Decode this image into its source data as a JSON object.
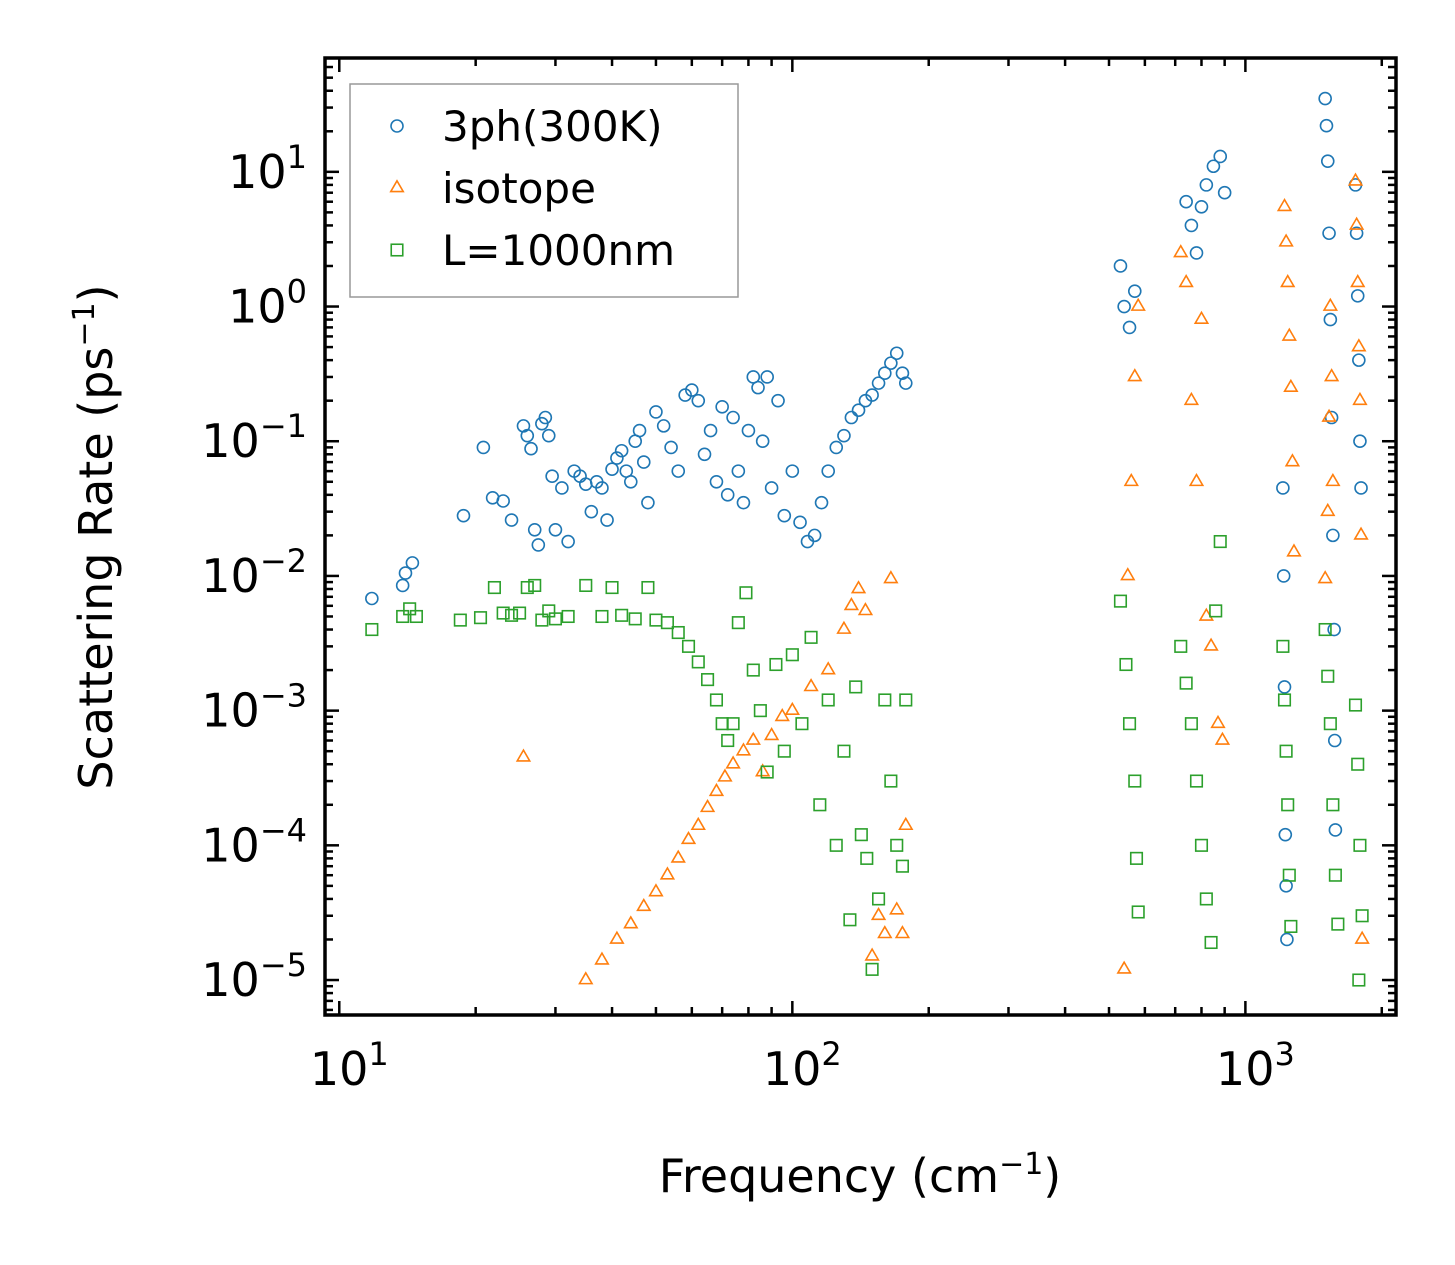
{
  "chart_data": {
    "type": "scatter",
    "xscale": "log",
    "yscale": "log",
    "xlabel": "Frequency (cm",
    "xlabel_exp": "−1",
    "xlabel_close": ")",
    "ylabel": "Scattering Rate (ps",
    "ylabel_exp": "−1",
    "ylabel_close": ")",
    "xlim": [
      9.3,
      2150
    ],
    "ylim": [
      5.5e-06,
      70
    ],
    "legend_position": "top-left",
    "x_ticks": [
      {
        "value": 10,
        "base": "10",
        "exp": "1"
      },
      {
        "value": 100,
        "base": "10",
        "exp": "2"
      },
      {
        "value": 1000,
        "base": "10",
        "exp": "3"
      }
    ],
    "y_ticks": [
      {
        "value": 1e-05,
        "base": "10",
        "exp": "−5"
      },
      {
        "value": 0.0001,
        "base": "10",
        "exp": "−4"
      },
      {
        "value": 0.001,
        "base": "10",
        "exp": "−3"
      },
      {
        "value": 0.01,
        "base": "10",
        "exp": "−2"
      },
      {
        "value": 0.1,
        "base": "10",
        "exp": "−1"
      },
      {
        "value": 1,
        "base": "10",
        "exp": "0"
      },
      {
        "value": 10,
        "base": "10",
        "exp": "1"
      }
    ],
    "series": [
      {
        "name": "3ph(300K)",
        "marker": "circle",
        "color": "#1f77b4",
        "points": [
          [
            11.8,
            0.0068
          ],
          [
            13.8,
            0.0085
          ],
          [
            14.0,
            0.0105
          ],
          [
            14.5,
            0.0125
          ],
          [
            18.8,
            0.028
          ],
          [
            20.8,
            0.09
          ],
          [
            21.8,
            0.038
          ],
          [
            23.0,
            0.036
          ],
          [
            24.0,
            0.026
          ],
          [
            25.5,
            0.13
          ],
          [
            26.0,
            0.11
          ],
          [
            26.5,
            0.088
          ],
          [
            27.0,
            0.022
          ],
          [
            27.5,
            0.017
          ],
          [
            28.0,
            0.135
          ],
          [
            28.5,
            0.15
          ],
          [
            29.0,
            0.11
          ],
          [
            29.5,
            0.055
          ],
          [
            30.0,
            0.022
          ],
          [
            31.0,
            0.045
          ],
          [
            32.0,
            0.018
          ],
          [
            33.0,
            0.06
          ],
          [
            34.0,
            0.055
          ],
          [
            35.0,
            0.048
          ],
          [
            36.0,
            0.03
          ],
          [
            37.0,
            0.05
          ],
          [
            38.0,
            0.045
          ],
          [
            39.0,
            0.026
          ],
          [
            40.0,
            0.062
          ],
          [
            41.0,
            0.075
          ],
          [
            42.0,
            0.085
          ],
          [
            43.0,
            0.06
          ],
          [
            44.0,
            0.05
          ],
          [
            45.0,
            0.1
          ],
          [
            46.0,
            0.12
          ],
          [
            47.0,
            0.07
          ],
          [
            48.0,
            0.035
          ],
          [
            50.0,
            0.165
          ],
          [
            52.0,
            0.13
          ],
          [
            54.0,
            0.09
          ],
          [
            56.0,
            0.06
          ],
          [
            58.0,
            0.22
          ],
          [
            60.0,
            0.24
          ],
          [
            62.0,
            0.2
          ],
          [
            64.0,
            0.08
          ],
          [
            66.0,
            0.12
          ],
          [
            68.0,
            0.05
          ],
          [
            70.0,
            0.18
          ],
          [
            72.0,
            0.04
          ],
          [
            74.0,
            0.15
          ],
          [
            76.0,
            0.06
          ],
          [
            78.0,
            0.035
          ],
          [
            80.0,
            0.12
          ],
          [
            82.0,
            0.3
          ],
          [
            84.0,
            0.25
          ],
          [
            86.0,
            0.1
          ],
          [
            88.0,
            0.3
          ],
          [
            90.0,
            0.045
          ],
          [
            93.0,
            0.2
          ],
          [
            96.0,
            0.028
          ],
          [
            100.0,
            0.06
          ],
          [
            104.0,
            0.025
          ],
          [
            108.0,
            0.018
          ],
          [
            112.0,
            0.02
          ],
          [
            116.0,
            0.035
          ],
          [
            120.0,
            0.06
          ],
          [
            125.0,
            0.09
          ],
          [
            130.0,
            0.11
          ],
          [
            135.0,
            0.15
          ],
          [
            140.0,
            0.17
          ],
          [
            145.0,
            0.2
          ],
          [
            150.0,
            0.22
          ],
          [
            155.0,
            0.27
          ],
          [
            160.0,
            0.32
          ],
          [
            165.0,
            0.38
          ],
          [
            170.0,
            0.45
          ],
          [
            175.0,
            0.32
          ],
          [
            178.0,
            0.27
          ],
          [
            530.0,
            2.0
          ],
          [
            540.0,
            1.0
          ],
          [
            555.0,
            0.7
          ],
          [
            570.0,
            1.3
          ],
          [
            740.0,
            6.0
          ],
          [
            760.0,
            4.0
          ],
          [
            780.0,
            2.5
          ],
          [
            800.0,
            5.5
          ],
          [
            820.0,
            8.0
          ],
          [
            850.0,
            11.0
          ],
          [
            880.0,
            13.0
          ],
          [
            900.0,
            7.0
          ],
          [
            1210.0,
            0.045
          ],
          [
            1215.0,
            0.01
          ],
          [
            1220.0,
            0.0015
          ],
          [
            1225.0,
            0.00012
          ],
          [
            1230.0,
            5e-05
          ],
          [
            1235.0,
            2e-05
          ],
          [
            1500.0,
            35.0
          ],
          [
            1510.0,
            22.0
          ],
          [
            1520.0,
            12.0
          ],
          [
            1530.0,
            3.5
          ],
          [
            1540.0,
            0.8
          ],
          [
            1550.0,
            0.15
          ],
          [
            1560.0,
            0.02
          ],
          [
            1570.0,
            0.004
          ],
          [
            1575.0,
            0.0006
          ],
          [
            1580.0,
            0.00013
          ],
          [
            1750.0,
            8.0
          ],
          [
            1760.0,
            3.5
          ],
          [
            1770.0,
            1.2
          ],
          [
            1780.0,
            0.4
          ],
          [
            1790.0,
            0.1
          ],
          [
            1800.0,
            0.045
          ]
        ]
      },
      {
        "name": "isotope",
        "marker": "triangle",
        "color": "#ff7f0e",
        "points": [
          [
            25.5,
            0.00045
          ],
          [
            35.0,
            1e-05
          ],
          [
            38.0,
            1.4e-05
          ],
          [
            41.0,
            2e-05
          ],
          [
            44.0,
            2.6e-05
          ],
          [
            47.0,
            3.5e-05
          ],
          [
            50.0,
            4.5e-05
          ],
          [
            53.0,
            6e-05
          ],
          [
            56.0,
            8e-05
          ],
          [
            59.0,
            0.00011
          ],
          [
            62.0,
            0.00014
          ],
          [
            65.0,
            0.00019
          ],
          [
            68.0,
            0.00025
          ],
          [
            71.0,
            0.00032
          ],
          [
            74.0,
            0.0004
          ],
          [
            78.0,
            0.0005
          ],
          [
            82.0,
            0.0006
          ],
          [
            86.0,
            0.00035
          ],
          [
            90.0,
            0.00065
          ],
          [
            95.0,
            0.0009
          ],
          [
            100.0,
            0.001
          ],
          [
            110.0,
            0.0015
          ],
          [
            120.0,
            0.002
          ],
          [
            130.0,
            0.004
          ],
          [
            135.0,
            0.006
          ],
          [
            140.0,
            0.008
          ],
          [
            145.0,
            0.0055
          ],
          [
            150.0,
            1.5e-05
          ],
          [
            155.0,
            3e-05
          ],
          [
            160.0,
            2.2e-05
          ],
          [
            165.0,
            0.0095
          ],
          [
            170.0,
            3.3e-05
          ],
          [
            175.0,
            2.2e-05
          ],
          [
            178.0,
            0.00014
          ],
          [
            540.0,
            1.2e-05
          ],
          [
            550.0,
            0.01
          ],
          [
            560.0,
            0.05
          ],
          [
            570.0,
            0.3
          ],
          [
            580.0,
            1.0
          ],
          [
            720.0,
            2.5
          ],
          [
            740.0,
            1.5
          ],
          [
            760.0,
            0.2
          ],
          [
            780.0,
            0.05
          ],
          [
            800.0,
            0.8
          ],
          [
            820.0,
            0.005
          ],
          [
            840.0,
            0.003
          ],
          [
            870.0,
            0.0008
          ],
          [
            890.0,
            0.0006
          ],
          [
            1220.0,
            5.5
          ],
          [
            1230.0,
            3.0
          ],
          [
            1240.0,
            1.5
          ],
          [
            1250.0,
            0.6
          ],
          [
            1260.0,
            0.25
          ],
          [
            1270.0,
            0.07
          ],
          [
            1280.0,
            0.015
          ],
          [
            1500.0,
            0.0095
          ],
          [
            1520.0,
            0.03
          ],
          [
            1530.0,
            0.15
          ],
          [
            1540.0,
            1.0
          ],
          [
            1550.0,
            0.3
          ],
          [
            1560.0,
            0.05
          ],
          [
            1750.0,
            8.5
          ],
          [
            1760.0,
            4.0
          ],
          [
            1770.0,
            1.5
          ],
          [
            1780.0,
            0.5
          ],
          [
            1790.0,
            0.2
          ],
          [
            1800.0,
            0.02
          ],
          [
            1810.0,
            2e-05
          ]
        ]
      },
      {
        "name": "L=1000nm",
        "marker": "square",
        "color": "#2ca02c",
        "points": [
          [
            11.8,
            0.004
          ],
          [
            13.8,
            0.005
          ],
          [
            14.3,
            0.0057
          ],
          [
            14.8,
            0.005
          ],
          [
            18.5,
            0.0047
          ],
          [
            20.5,
            0.0049
          ],
          [
            22.0,
            0.0082
          ],
          [
            23.0,
            0.0053
          ],
          [
            24.0,
            0.0051
          ],
          [
            25.0,
            0.0053
          ],
          [
            26.0,
            0.0082
          ],
          [
            27.0,
            0.0085
          ],
          [
            28.0,
            0.0047
          ],
          [
            29.0,
            0.0055
          ],
          [
            30.0,
            0.0048
          ],
          [
            32.0,
            0.005
          ],
          [
            35.0,
            0.0085
          ],
          [
            38.0,
            0.005
          ],
          [
            40.0,
            0.0082
          ],
          [
            42.0,
            0.0051
          ],
          [
            45.0,
            0.0048
          ],
          [
            48.0,
            0.0082
          ],
          [
            50.0,
            0.0047
          ],
          [
            53.0,
            0.0045
          ],
          [
            56.0,
            0.0038
          ],
          [
            59.0,
            0.003
          ],
          [
            62.0,
            0.0023
          ],
          [
            65.0,
            0.0017
          ],
          [
            68.0,
            0.0012
          ],
          [
            70.0,
            0.0008
          ],
          [
            72.0,
            0.0006
          ],
          [
            74.0,
            0.0008
          ],
          [
            76.0,
            0.0045
          ],
          [
            79.0,
            0.0075
          ],
          [
            82.0,
            0.002
          ],
          [
            85.0,
            0.001
          ],
          [
            88.0,
            0.00035
          ],
          [
            92.0,
            0.0022
          ],
          [
            96.0,
            0.0005
          ],
          [
            100.0,
            0.0026
          ],
          [
            105.0,
            0.0008
          ],
          [
            110.0,
            0.0035
          ],
          [
            115.0,
            0.0002
          ],
          [
            120.0,
            0.0012
          ],
          [
            125.0,
            0.0001
          ],
          [
            130.0,
            0.0005
          ],
          [
            134.0,
            2.8e-05
          ],
          [
            138.0,
            0.0015
          ],
          [
            142.0,
            0.00012
          ],
          [
            146.0,
            8e-05
          ],
          [
            150.0,
            1.2e-05
          ],
          [
            155.0,
            4e-05
          ],
          [
            160.0,
            0.0012
          ],
          [
            165.0,
            0.0003
          ],
          [
            170.0,
            0.0001
          ],
          [
            175.0,
            7e-05
          ],
          [
            178.0,
            0.0012
          ],
          [
            530.0,
            0.0065
          ],
          [
            545.0,
            0.0022
          ],
          [
            555.0,
            0.0008
          ],
          [
            570.0,
            0.0003
          ],
          [
            575.0,
            8e-05
          ],
          [
            580.0,
            3.2e-05
          ],
          [
            720.0,
            0.003
          ],
          [
            740.0,
            0.0016
          ],
          [
            760.0,
            0.0008
          ],
          [
            780.0,
            0.0003
          ],
          [
            800.0,
            0.0001
          ],
          [
            820.0,
            4e-05
          ],
          [
            840.0,
            1.9e-05
          ],
          [
            860.0,
            0.0055
          ],
          [
            880.0,
            0.018
          ],
          [
            1210.0,
            0.003
          ],
          [
            1220.0,
            0.0012
          ],
          [
            1230.0,
            0.0005
          ],
          [
            1240.0,
            0.0002
          ],
          [
            1250.0,
            6e-05
          ],
          [
            1260.0,
            2.5e-05
          ],
          [
            1500.0,
            0.004
          ],
          [
            1520.0,
            0.0018
          ],
          [
            1540.0,
            0.0008
          ],
          [
            1560.0,
            0.0002
          ],
          [
            1580.0,
            6e-05
          ],
          [
            1600.0,
            2.6e-05
          ],
          [
            1750.0,
            0.0011
          ],
          [
            1770.0,
            0.0004
          ],
          [
            1790.0,
            0.0001
          ],
          [
            1810.0,
            3e-05
          ],
          [
            1780.0,
            1e-05
          ]
        ]
      }
    ]
  }
}
